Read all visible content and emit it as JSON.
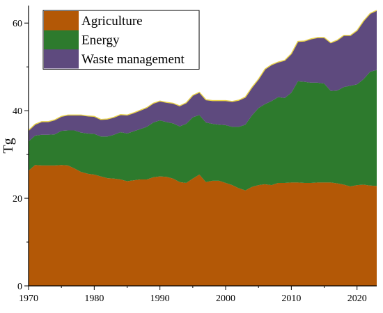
{
  "chart_data": {
    "type": "area",
    "stacked": true,
    "ylabel": "Tg",
    "xlabel": "",
    "xlim": [
      1970,
      2023
    ],
    "ylim": [
      0,
      64
    ],
    "x_ticks": [
      1970,
      1980,
      1990,
      2000,
      2010,
      2020
    ],
    "y_ticks": [
      0,
      20,
      40,
      60
    ],
    "grid": false,
    "legend_position": "top-left",
    "x": [
      1970,
      1971,
      1972,
      1973,
      1974,
      1975,
      1976,
      1977,
      1978,
      1979,
      1980,
      1981,
      1982,
      1983,
      1984,
      1985,
      1986,
      1987,
      1988,
      1989,
      1990,
      1991,
      1992,
      1993,
      1994,
      1995,
      1996,
      1997,
      1998,
      1999,
      2000,
      2001,
      2002,
      2003,
      2004,
      2005,
      2006,
      2007,
      2008,
      2009,
      2010,
      2011,
      2012,
      2013,
      2014,
      2015,
      2016,
      2017,
      2018,
      2019,
      2020,
      2021,
      2022,
      2023
    ],
    "series": [
      {
        "name": "Agriculture",
        "color": "#b35806",
        "values": [
          26.3,
          27.6,
          27.5,
          27.5,
          27.5,
          27.6,
          27.5,
          26.8,
          26.0,
          25.6,
          25.4,
          25.0,
          24.6,
          24.5,
          24.3,
          23.9,
          24.1,
          24.3,
          24.3,
          24.8,
          25.0,
          24.9,
          24.5,
          23.7,
          23.5,
          24.5,
          25.4,
          23.7,
          24.0,
          24.0,
          23.5,
          23.0,
          22.3,
          21.8,
          22.6,
          23.0,
          23.2,
          23.0,
          23.5,
          23.5,
          23.6,
          23.6,
          23.5,
          23.5,
          23.6,
          23.6,
          23.6,
          23.4,
          23.1,
          22.7,
          23.0,
          23.1,
          22.9,
          22.8
        ]
      },
      {
        "name": "Energy",
        "color": "#2d7a2d",
        "values": [
          6.7,
          6.7,
          7.0,
          7.0,
          7.1,
          7.8,
          8.0,
          8.7,
          9.0,
          9.2,
          9.3,
          9.1,
          9.5,
          10.0,
          10.8,
          10.9,
          11.2,
          11.5,
          12.0,
          12.5,
          12.8,
          12.5,
          12.6,
          12.7,
          13.5,
          14.0,
          13.6,
          13.6,
          13.0,
          12.8,
          13.2,
          13.3,
          14.0,
          15.0,
          16.3,
          17.6,
          18.3,
          19.2,
          19.6,
          19.4,
          20.5,
          23.1,
          23.1,
          22.9,
          22.8,
          22.6,
          20.9,
          21.2,
          22.3,
          23.0,
          23.0,
          24.1,
          26.0,
          26.5
        ]
      },
      {
        "name": "Waste management",
        "color": "#5e4a7e",
        "values": [
          2.5,
          2.6,
          3.0,
          3.0,
          3.3,
          3.3,
          3.5,
          3.5,
          4.0,
          4.0,
          4.0,
          3.9,
          4.0,
          4.0,
          4.0,
          4.2,
          4.2,
          4.3,
          4.4,
          4.4,
          4.4,
          4.5,
          4.6,
          4.7,
          4.8,
          5.0,
          5.2,
          5.2,
          5.3,
          5.5,
          5.6,
          5.8,
          6.1,
          6.3,
          6.4,
          6.6,
          8.0,
          8.3,
          8.0,
          8.6,
          8.9,
          9.1,
          9.3,
          10.0,
          10.3,
          10.5,
          11.0,
          11.5,
          11.8,
          11.5,
          12.3,
          13.3,
          13.3,
          13.6
        ]
      }
    ],
    "top_edge_color": "#e8d24a"
  }
}
